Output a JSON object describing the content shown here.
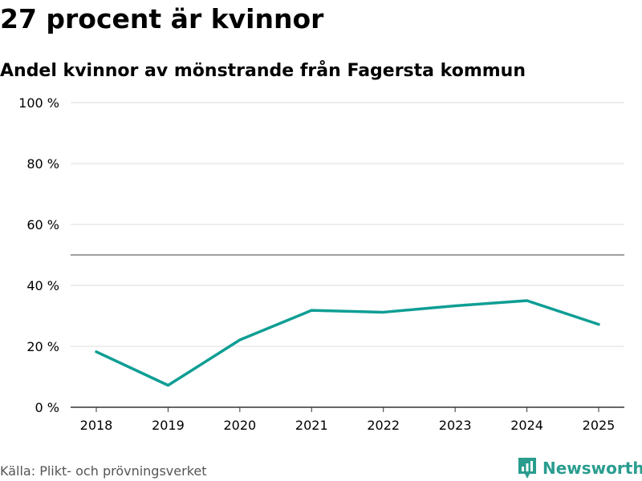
{
  "title": "27 procent är kvinnor",
  "subtitle": "Andel kvinnor av mönstrande från Fagersta kommun",
  "source": "Källa: Plikt- och prövningsverket",
  "brand": "Newsworthy",
  "colors": {
    "line": "#0f9e94",
    "grid": "#dddddd",
    "reference": "#666666",
    "axis": "#333333",
    "brand": "#2a9d8f"
  },
  "chart_data": {
    "type": "line",
    "title": "27 procent är kvinnor",
    "subtitle": "Andel kvinnor av mönstrande från Fagersta kommun",
    "xlabel": "",
    "ylabel": "",
    "categories": [
      "2018",
      "2019",
      "2020",
      "2021",
      "2022",
      "2023",
      "2024",
      "2025"
    ],
    "series": [
      {
        "name": "Andel kvinnor",
        "values": [
          18.2,
          7.2,
          22.1,
          31.8,
          31.2,
          33.3,
          35.0,
          27.2
        ]
      }
    ],
    "ylim": [
      0,
      100
    ],
    "yticks": [
      0,
      20,
      40,
      60,
      80,
      100
    ],
    "ytick_labels": [
      "0 %",
      "20 %",
      "40 %",
      "60 %",
      "80 %",
      "100 %"
    ],
    "reference_line": 50,
    "grid": true
  }
}
